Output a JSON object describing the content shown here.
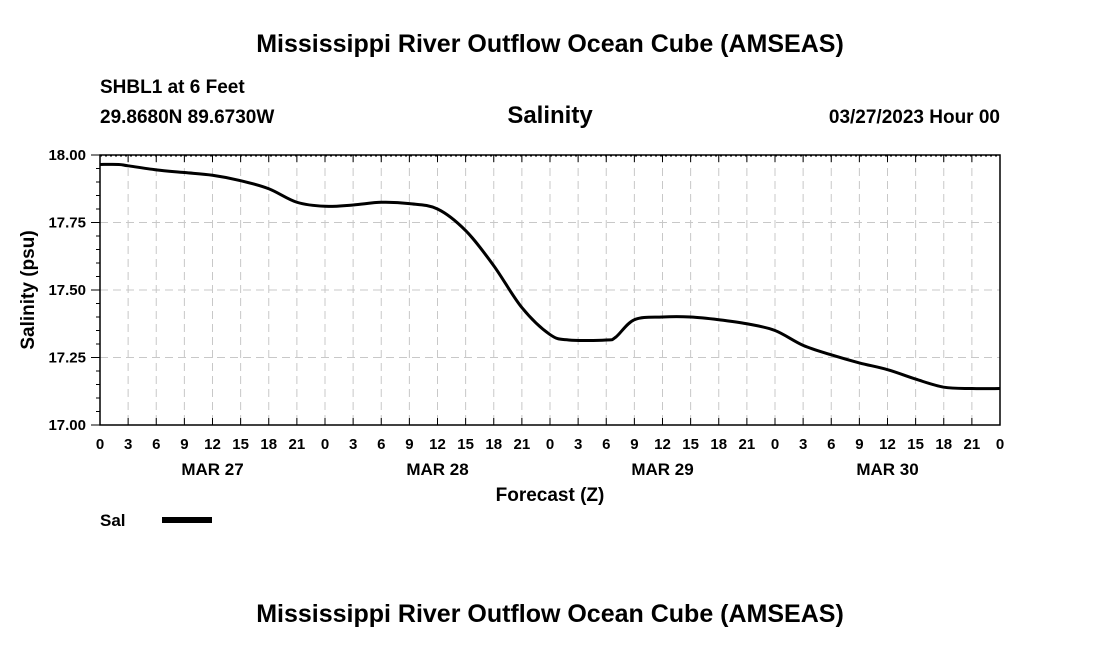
{
  "header": {
    "title": "Mississippi River Outflow Ocean Cube (AMSEAS)",
    "station": "SHBL1 at 6 Feet",
    "coordinates": "29.8680N  89.6730W",
    "subtitle": "Salinity",
    "datetime": "03/27/2023 Hour 00"
  },
  "legend": {
    "label": "Sal",
    "color": "#000000"
  },
  "footer": {
    "title": "Mississippi River Outflow Ocean Cube (AMSEAS)"
  },
  "chart_data": {
    "type": "line",
    "title": "Salinity",
    "xlabel": "Forecast (Z)",
    "ylabel": "Salinity (psu)",
    "ylim": [
      17.0,
      18.0
    ],
    "xlim": [
      0,
      96
    ],
    "y_ticks": [
      "17.00",
      "17.25",
      "17.50",
      "17.75",
      "18.00"
    ],
    "y_tick_values": [
      17.0,
      17.25,
      17.5,
      17.75,
      18.0
    ],
    "x_tick_labels": [
      "0",
      "3",
      "6",
      "9",
      "12",
      "15",
      "18",
      "21",
      "0",
      "3",
      "6",
      "9",
      "12",
      "15",
      "18",
      "21",
      "0",
      "3",
      "6",
      "9",
      "12",
      "15",
      "18",
      "21",
      "0",
      "3",
      "6",
      "9",
      "12",
      "15",
      "18",
      "21",
      "0"
    ],
    "day_labels": [
      {
        "label": "MAR 27",
        "hour": 12
      },
      {
        "label": "MAR 28",
        "hour": 36
      },
      {
        "label": "MAR 29",
        "hour": 60
      },
      {
        "label": "MAR 30",
        "hour": 84
      }
    ],
    "grid": true,
    "series": [
      {
        "name": "Sal",
        "color": "#000000",
        "x": [
          0,
          2,
          3,
          6,
          9,
          12,
          15,
          18,
          21,
          24,
          27,
          30,
          33,
          36,
          39,
          42,
          45,
          48,
          50,
          54,
          55,
          57,
          60,
          63,
          66,
          69,
          72,
          75,
          78,
          81,
          84,
          87,
          90,
          93,
          96
        ],
        "y": [
          17.965,
          17.965,
          17.96,
          17.945,
          17.935,
          17.925,
          17.905,
          17.875,
          17.825,
          17.81,
          17.815,
          17.825,
          17.82,
          17.8,
          17.72,
          17.59,
          17.435,
          17.335,
          17.315,
          17.315,
          17.325,
          17.39,
          17.4,
          17.4,
          17.39,
          17.375,
          17.35,
          17.295,
          17.26,
          17.23,
          17.205,
          17.17,
          17.14,
          17.135,
          17.135
        ]
      }
    ]
  }
}
